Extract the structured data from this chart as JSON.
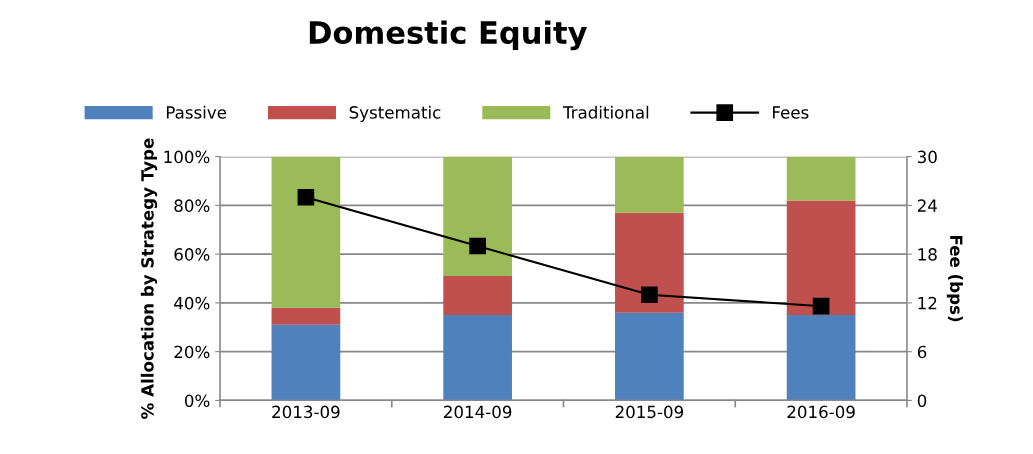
{
  "chart_data": {
    "type": "bar",
    "title": "Domestic Equity",
    "ylabel": "% Allocation by Strategy Type",
    "y2label": "Fee (bps)",
    "categories": [
      "2013-09",
      "2014-09",
      "2015-09",
      "2016-09"
    ],
    "stacked": true,
    "series": [
      {
        "name": "Passive",
        "color": "#4f81bd",
        "values": [
          31,
          35,
          36,
          35
        ]
      },
      {
        "name": "Systematic",
        "color": "#c0504d",
        "values": [
          7,
          16,
          41,
          47
        ]
      },
      {
        "name": "Traditional",
        "color": "#9bbb59",
        "values": [
          62,
          49,
          23,
          18
        ]
      },
      {
        "name": "Fees",
        "type": "line",
        "axis": "y2",
        "color": "#000000",
        "marker": "square",
        "values": [
          25,
          19,
          13,
          11.6
        ]
      }
    ],
    "ylim": [
      0,
      100
    ],
    "yticks": [
      {
        "value": 0,
        "label": "0%"
      },
      {
        "value": 20,
        "label": "20%"
      },
      {
        "value": 40,
        "label": "40%"
      },
      {
        "value": 60,
        "label": "60%"
      },
      {
        "value": 80,
        "label": "80%"
      },
      {
        "value": 100,
        "label": "100%"
      }
    ],
    "y2lim": [
      0,
      30
    ],
    "y2ticks": [
      0,
      6,
      12,
      18,
      24,
      30
    ],
    "grid": "y",
    "legend": "top"
  }
}
